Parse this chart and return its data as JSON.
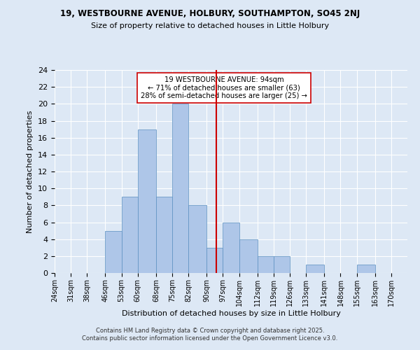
{
  "title1": "19, WESTBOURNE AVENUE, HOLBURY, SOUTHAMPTON, SO45 2NJ",
  "title2": "Size of property relative to detached houses in Little Holbury",
  "xlabel": "Distribution of detached houses by size in Little Holbury",
  "ylabel": "Number of detached properties",
  "bin_labels": [
    "24sqm",
    "31sqm",
    "38sqm",
    "46sqm",
    "53sqm",
    "60sqm",
    "68sqm",
    "75sqm",
    "82sqm",
    "90sqm",
    "97sqm",
    "104sqm",
    "112sqm",
    "119sqm",
    "126sqm",
    "133sqm",
    "141sqm",
    "148sqm",
    "155sqm",
    "163sqm",
    "170sqm"
  ],
  "bin_edges": [
    24,
    31,
    38,
    46,
    53,
    60,
    68,
    75,
    82,
    90,
    97,
    104,
    112,
    119,
    126,
    133,
    141,
    148,
    155,
    163,
    170
  ],
  "counts": [
    0,
    0,
    0,
    5,
    9,
    17,
    9,
    20,
    8,
    3,
    6,
    4,
    2,
    2,
    0,
    1,
    0,
    0,
    1,
    0
  ],
  "bar_color": "#aec6e8",
  "bar_edge_color": "#5a8fc0",
  "vline_x": 94,
  "vline_color": "#cc0000",
  "annotation_text": "19 WESTBOURNE AVENUE: 94sqm\n← 71% of detached houses are smaller (63)\n28% of semi-detached houses are larger (25) →",
  "annotation_box_color": "#ffffff",
  "annotation_box_edge": "#cc0000",
  "ylim": [
    0,
    24
  ],
  "yticks": [
    0,
    2,
    4,
    6,
    8,
    10,
    12,
    14,
    16,
    18,
    20,
    22,
    24
  ],
  "footer": "Contains HM Land Registry data © Crown copyright and database right 2025.\nContains public sector information licensed under the Open Government Licence v3.0.",
  "bg_color": "#dde8f5",
  "plot_bg_color": "#dde8f5"
}
